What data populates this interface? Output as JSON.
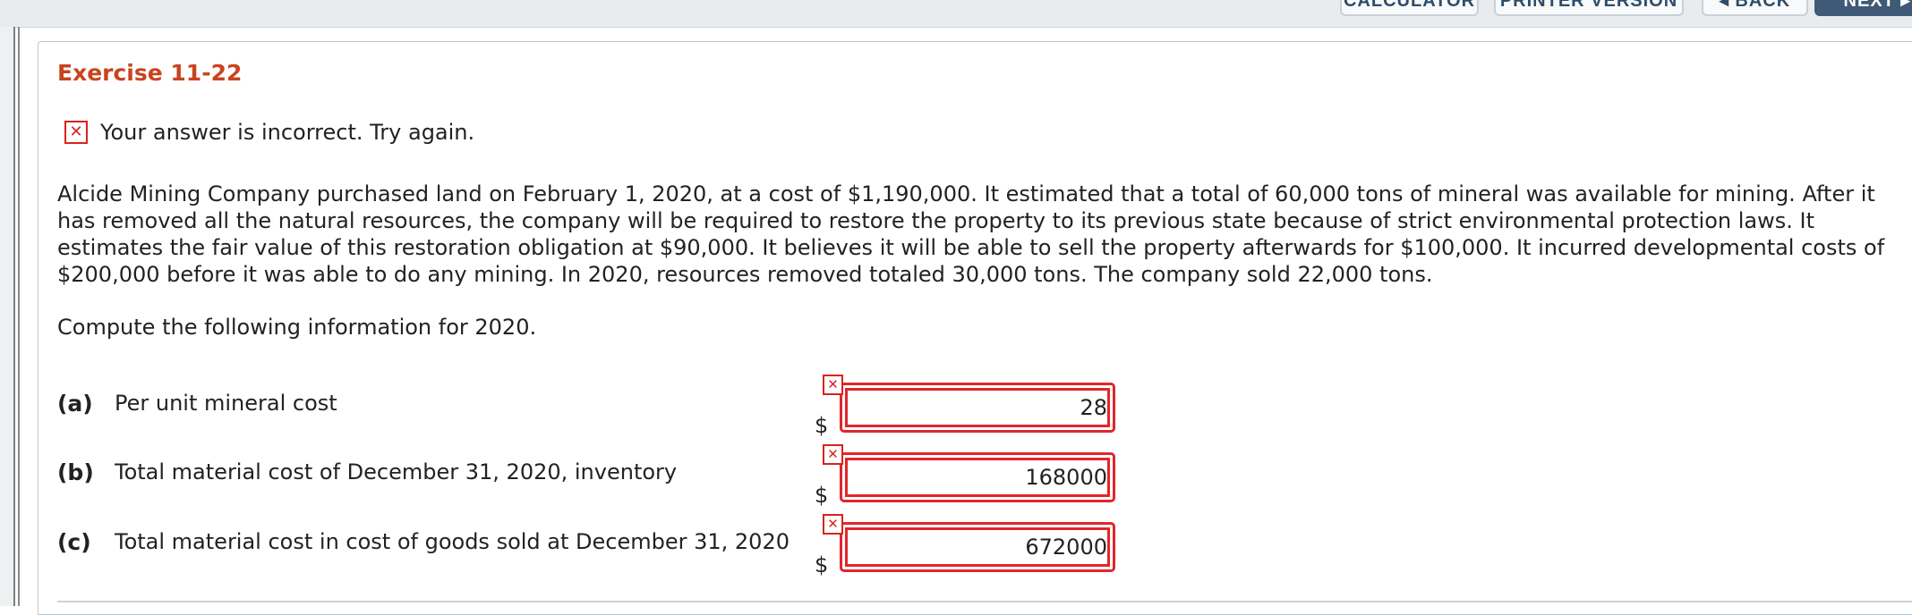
{
  "toolbar": {
    "calculator_label": "CALCULATOR",
    "printer_label": "PRINTER VERSION",
    "back_label": "◂ BACK",
    "next_label": "NEXT ▸"
  },
  "exercise": {
    "title": "Exercise 11-22",
    "feedback_icon": "x-icon",
    "feedback_text": "Your answer is incorrect.  Try again.",
    "problem_text": "Alcide Mining Company purchased land on February 1, 2020, at a cost of $1,190,000. It estimated that a total of 60,000 tons of mineral was available for mining. After it has removed all the natural resources, the company will be required to restore the property to its previous state because of strict environmental protection laws. It estimates the fair value of this restoration obligation at $90,000. It believes it will be able to sell the property afterwards for $100,000. It incurred developmental costs of $200,000 before it was able to do any mining. In 2020, resources removed totaled 30,000 tons. The company sold 22,000 tons.",
    "prompt": "Compute the following information for 2020."
  },
  "questions": [
    {
      "letter": "(a)",
      "label": "Per unit mineral cost",
      "currency": "$",
      "value": "28",
      "status": "incorrect"
    },
    {
      "letter": "(b)",
      "label": "Total material cost of December 31, 2020, inventory",
      "currency": "$",
      "value": "168000",
      "status": "incorrect"
    },
    {
      "letter": "(c)",
      "label": "Total material cost in cost of goods sold at December 31, 2020",
      "currency": "$",
      "value": "672000",
      "status": "incorrect"
    }
  ],
  "colors": {
    "title": "#c8441f",
    "error": "#e0262b",
    "next_button": "#3f5a77"
  }
}
